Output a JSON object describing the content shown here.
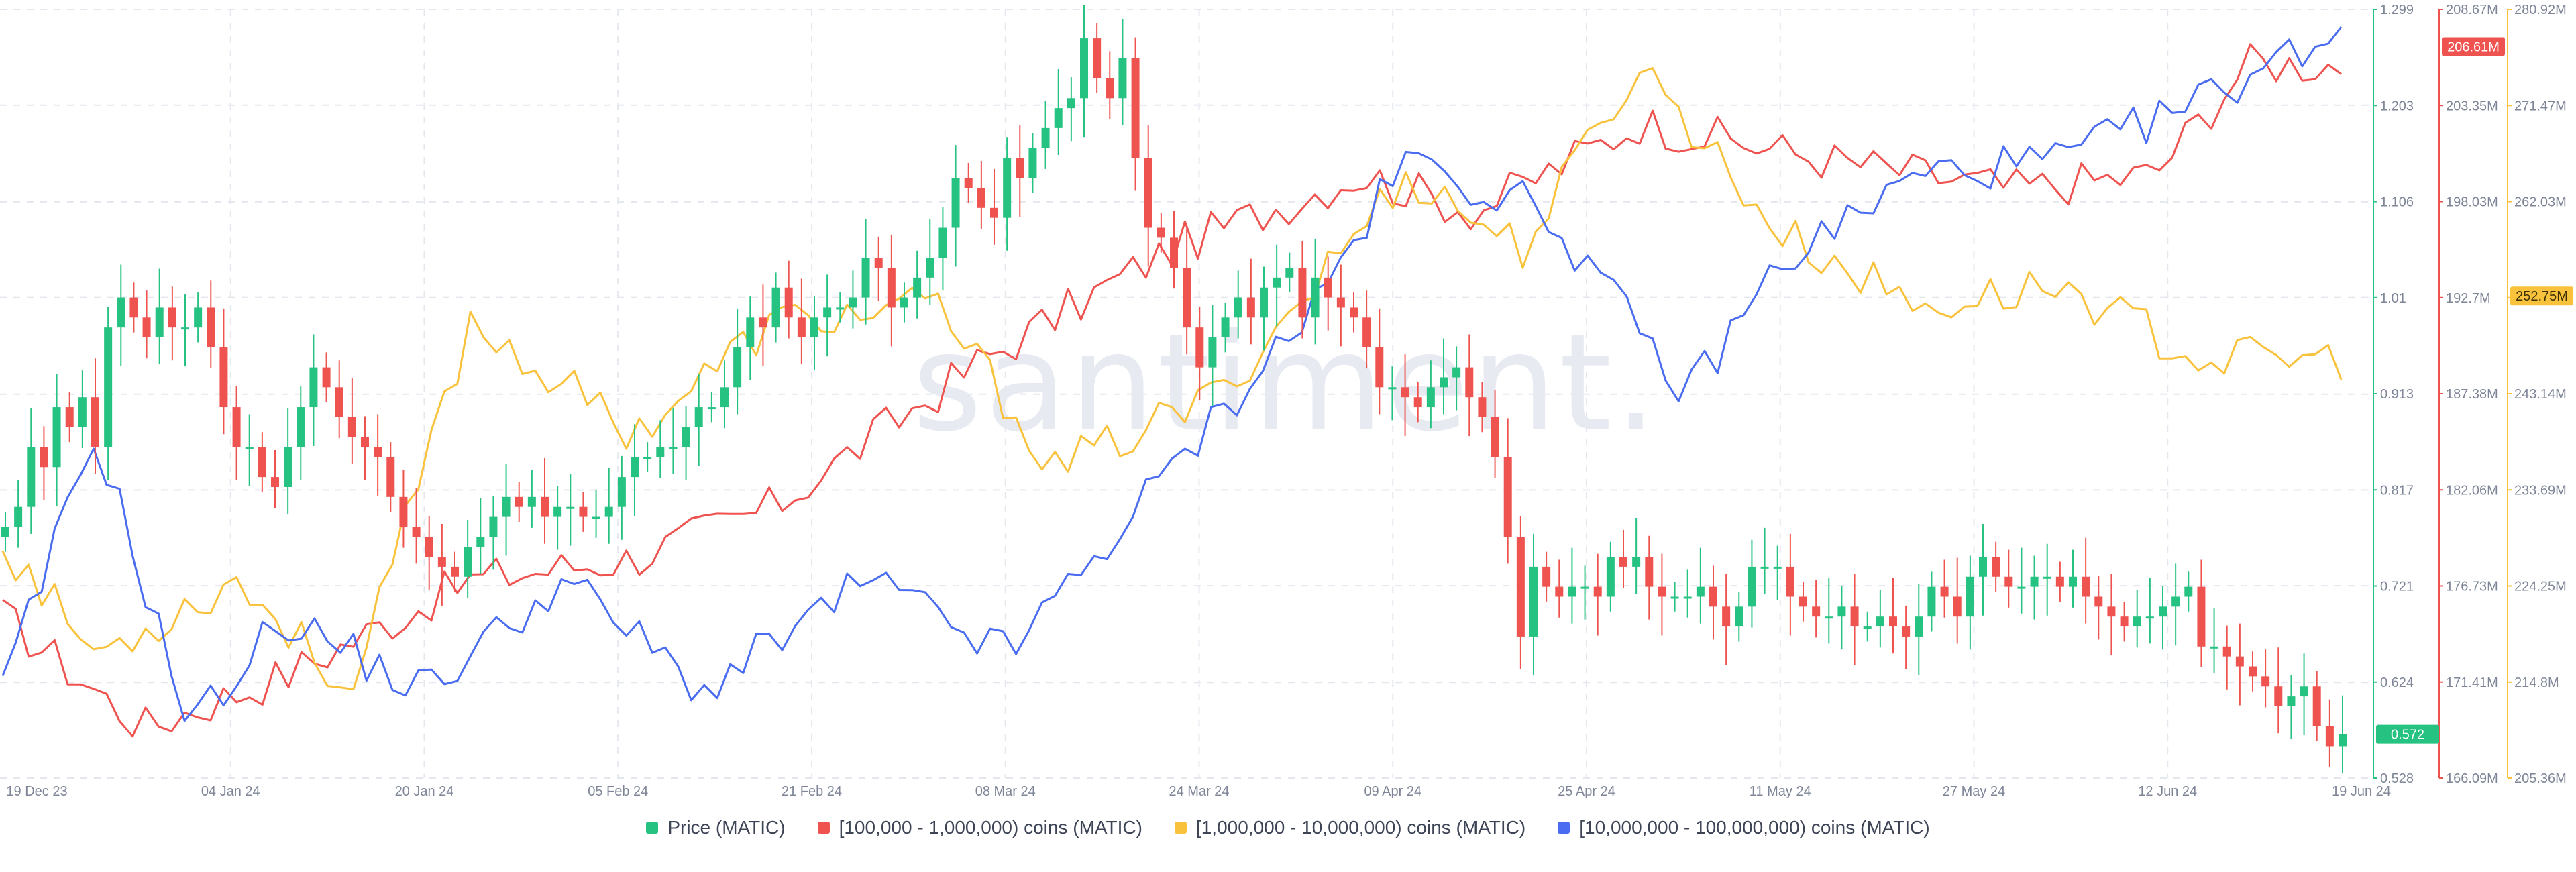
{
  "chart_data": {
    "type": "line",
    "watermark": "santiment.",
    "x_ticks": [
      "19 Dec 23",
      "04 Jan 24",
      "20 Jan 24",
      "05 Feb 24",
      "21 Feb 24",
      "08 Mar 24",
      "24 Mar 24",
      "09 Apr 24",
      "25 Apr 24",
      "11 May 24",
      "27 May 24",
      "12 Jun 24",
      "19 Jun 24"
    ],
    "axes": {
      "price": {
        "ticks": [
          "1.299",
          "1.203",
          "1.106",
          "1.01",
          "0.913",
          "0.817",
          "0.721",
          "0.624",
          "0.528"
        ],
        "ylim": [
          0.528,
          1.299
        ],
        "color": "#26c281"
      },
      "red": {
        "ticks": [
          "208.67M",
          "203.35M",
          "198.03M",
          "192.7M",
          "187.38M",
          "182.06M",
          "176.73M",
          "171.41M",
          "166.09M"
        ],
        "ylim": [
          166.09,
          208.67
        ],
        "color": "#ef5350"
      },
      "orange": {
        "ticks": [
          "280.92M",
          "271.47M",
          "262.03M",
          "252.58M",
          "243.14M",
          "233.69M",
          "224.25M",
          "214.8M",
          "205.36M"
        ],
        "ylim": [
          205.36,
          280.92
        ],
        "color": "#f9c23c"
      }
    },
    "badges": {
      "red": "206.61M",
      "orange": "252.75M",
      "price": "0.572"
    },
    "legend": [
      {
        "label": "Price (MATIC)",
        "color": "#26c281"
      },
      {
        "label": "[100,000  - 1,000,000) coins (MATIC)",
        "color": "#ef5350"
      },
      {
        "label": "[1,000,000 - 10,000,000) coins (MATIC)",
        "color": "#f9c23c"
      },
      {
        "label": "[10,000,000 - 100,000,000) coins (MATIC)",
        "color": "#4a6cf0"
      }
    ],
    "price_close": [
      0.78,
      0.8,
      0.86,
      0.84,
      0.9,
      0.88,
      0.91,
      0.86,
      0.98,
      1.01,
      0.99,
      0.97,
      1.0,
      0.98,
      0.98,
      1.0,
      0.96,
      0.9,
      0.86,
      0.86,
      0.83,
      0.82,
      0.86,
      0.9,
      0.94,
      0.92,
      0.89,
      0.87,
      0.86,
      0.85,
      0.81,
      0.78,
      0.77,
      0.75,
      0.74,
      0.73,
      0.76,
      0.77,
      0.79,
      0.81,
      0.8,
      0.81,
      0.79,
      0.8,
      0.8,
      0.79,
      0.79,
      0.8,
      0.83,
      0.85,
      0.85,
      0.86,
      0.86,
      0.88,
      0.9,
      0.9,
      0.92,
      0.96,
      0.99,
      0.98,
      1.02,
      0.99,
      0.97,
      0.99,
      1.0,
      1.0,
      1.01,
      1.05,
      1.04,
      1.0,
      1.01,
      1.03,
      1.05,
      1.08,
      1.13,
      1.12,
      1.1,
      1.09,
      1.15,
      1.13,
      1.16,
      1.18,
      1.2,
      1.21,
      1.27,
      1.23,
      1.21,
      1.25,
      1.15,
      1.08,
      1.07,
      1.04,
      0.98,
      0.94,
      0.97,
      0.99,
      1.01,
      0.99,
      1.02,
      1.03,
      1.04,
      0.99,
      1.03,
      1.01,
      1.0,
      0.99,
      0.96,
      0.92,
      0.92,
      0.91,
      0.9,
      0.92,
      0.93,
      0.94,
      0.91,
      0.89,
      0.85,
      0.77,
      0.67,
      0.74,
      0.72,
      0.71,
      0.72,
      0.72,
      0.71,
      0.75,
      0.74,
      0.75,
      0.72,
      0.71,
      0.71,
      0.71,
      0.72,
      0.7,
      0.68,
      0.7,
      0.74,
      0.74,
      0.74,
      0.71,
      0.7,
      0.69,
      0.69,
      0.7,
      0.68,
      0.68,
      0.69,
      0.68,
      0.67,
      0.69,
      0.72,
      0.71,
      0.69,
      0.73,
      0.75,
      0.73,
      0.72,
      0.72,
      0.73,
      0.73,
      0.72,
      0.73,
      0.71,
      0.7,
      0.69,
      0.68,
      0.69,
      0.69,
      0.7,
      0.71,
      0.72,
      0.66,
      0.66,
      0.65,
      0.64,
      0.63,
      0.62,
      0.6,
      0.61,
      0.62,
      0.58,
      0.56,
      0.572
    ]
  }
}
